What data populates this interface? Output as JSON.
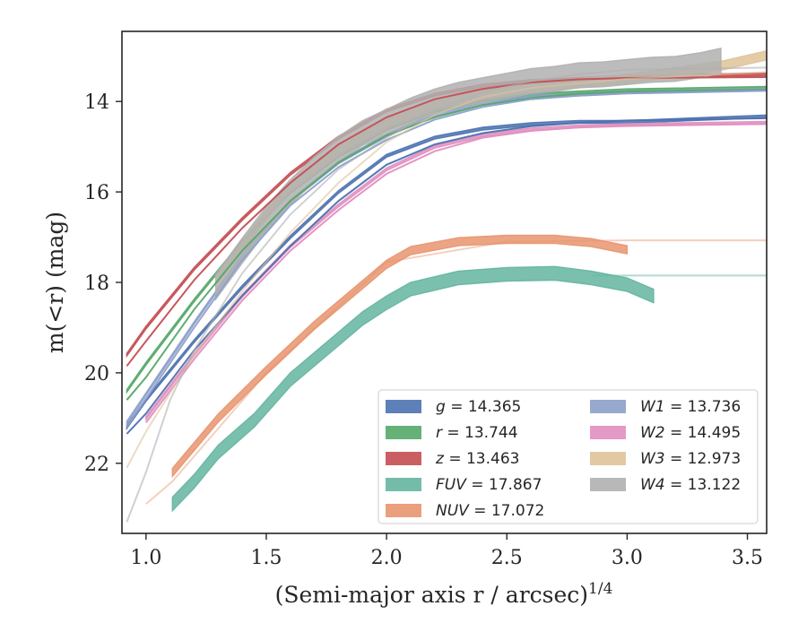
{
  "chart_data": {
    "type": "line",
    "title": "",
    "xlabel": "(Semi-major axis r / arcsec)",
    "xlabel_superscript": "1/4",
    "ylabel": "m(<r) (mag)",
    "xlim": [
      0.9,
      3.58
    ],
    "ylim": [
      23.55,
      12.45
    ],
    "y_inverted": true,
    "grid": false,
    "legend_position": "lower-right",
    "x_ticks": [
      1.0,
      1.5,
      2.0,
      2.5,
      3.0,
      3.5
    ],
    "x_tick_labels": [
      "1.0",
      "1.5",
      "2.0",
      "2.5",
      "3.0",
      "3.5"
    ],
    "y_ticks": [
      14,
      16,
      18,
      20,
      22
    ],
    "y_tick_labels": [
      "14",
      "16",
      "18",
      "20",
      "22"
    ],
    "series": [
      {
        "name": "g = 14.365",
        "color": "#4c72b0",
        "band_width_mag": 0.06,
        "profile": [
          [
            0.92,
            21.2
          ],
          [
            1.0,
            20.6
          ],
          [
            1.2,
            19.3
          ],
          [
            1.4,
            18.1
          ],
          [
            1.6,
            17.0
          ],
          [
            1.8,
            16.0
          ],
          [
            2.0,
            15.2
          ],
          [
            2.2,
            14.8
          ],
          [
            2.4,
            14.6
          ],
          [
            2.6,
            14.5
          ],
          [
            2.8,
            14.45
          ],
          [
            3.0,
            14.45
          ],
          [
            3.58,
            14.33
          ]
        ],
        "model": [
          [
            0.92,
            21.35
          ],
          [
            1.0,
            20.9
          ],
          [
            1.2,
            19.5
          ],
          [
            1.4,
            18.3
          ],
          [
            1.6,
            17.2
          ],
          [
            1.8,
            16.2
          ],
          [
            2.0,
            15.4
          ],
          [
            2.2,
            14.95
          ],
          [
            2.4,
            14.7
          ],
          [
            2.6,
            14.55
          ],
          [
            2.8,
            14.47
          ],
          [
            3.0,
            14.42
          ],
          [
            3.58,
            14.37
          ]
        ]
      },
      {
        "name": "r = 13.744",
        "color": "#55a868",
        "band_width_mag": 0.06,
        "profile": [
          [
            0.92,
            20.4
          ],
          [
            1.0,
            19.8
          ],
          [
            1.2,
            18.4
          ],
          [
            1.4,
            17.1
          ],
          [
            1.6,
            16.0
          ],
          [
            1.8,
            15.2
          ],
          [
            2.0,
            14.6
          ],
          [
            2.2,
            14.2
          ],
          [
            2.4,
            14.0
          ],
          [
            2.6,
            13.85
          ],
          [
            2.8,
            13.8
          ],
          [
            3.0,
            13.75
          ],
          [
            3.58,
            13.7
          ]
        ],
        "model": [
          [
            0.92,
            20.6
          ],
          [
            1.0,
            20.1
          ],
          [
            1.2,
            18.6
          ],
          [
            1.4,
            17.3
          ],
          [
            1.6,
            16.2
          ],
          [
            1.8,
            15.35
          ],
          [
            2.0,
            14.75
          ],
          [
            2.2,
            14.35
          ],
          [
            2.4,
            14.08
          ],
          [
            2.6,
            13.92
          ],
          [
            2.8,
            13.83
          ],
          [
            3.0,
            13.78
          ],
          [
            3.58,
            13.74
          ]
        ]
      },
      {
        "name": "z = 13.463",
        "color": "#c44e52",
        "band_width_mag": 0.06,
        "profile": [
          [
            0.92,
            19.6
          ],
          [
            1.0,
            19.0
          ],
          [
            1.2,
            17.7
          ],
          [
            1.4,
            16.6
          ],
          [
            1.6,
            15.6
          ],
          [
            1.8,
            14.8
          ],
          [
            2.0,
            14.2
          ],
          [
            2.2,
            13.85
          ],
          [
            2.4,
            13.65
          ],
          [
            2.6,
            13.55
          ],
          [
            2.8,
            13.5
          ],
          [
            3.0,
            13.45
          ],
          [
            3.58,
            13.4
          ]
        ],
        "model": [
          [
            0.92,
            19.85
          ],
          [
            1.0,
            19.3
          ],
          [
            1.2,
            17.95
          ],
          [
            1.4,
            16.8
          ],
          [
            1.6,
            15.8
          ],
          [
            1.8,
            14.95
          ],
          [
            2.0,
            14.35
          ],
          [
            2.2,
            13.95
          ],
          [
            2.4,
            13.72
          ],
          [
            2.6,
            13.58
          ],
          [
            2.8,
            13.51
          ],
          [
            3.0,
            13.48
          ],
          [
            3.58,
            13.46
          ]
        ]
      },
      {
        "name": "FUV = 17.867",
        "color": "#64b5a0",
        "band_width_mag": 0.3,
        "profile": [
          [
            1.11,
            22.9
          ],
          [
            1.2,
            22.4
          ],
          [
            1.3,
            21.75
          ],
          [
            1.45,
            21.05
          ],
          [
            1.6,
            20.15
          ],
          [
            1.8,
            19.25
          ],
          [
            1.9,
            18.8
          ],
          [
            2.0,
            18.45
          ],
          [
            2.1,
            18.15
          ],
          [
            2.3,
            17.9
          ],
          [
            2.5,
            17.82
          ],
          [
            2.7,
            17.8
          ],
          [
            2.85,
            17.9
          ],
          [
            3.0,
            18.05
          ],
          [
            3.11,
            18.3
          ]
        ],
        "model": [
          [
            2.85,
            17.85
          ],
          [
            3.58,
            17.85
          ]
        ],
        "model_opacity": 0.5
      },
      {
        "name": "NUV = 17.072",
        "color": "#e8956f",
        "band_width_mag": 0.18,
        "profile": [
          [
            1.11,
            22.2
          ],
          [
            1.3,
            21.0
          ],
          [
            1.5,
            19.95
          ],
          [
            1.7,
            18.95
          ],
          [
            1.9,
            18.05
          ],
          [
            2.0,
            17.6
          ],
          [
            2.1,
            17.3
          ],
          [
            2.3,
            17.1
          ],
          [
            2.5,
            17.05
          ],
          [
            2.7,
            17.05
          ],
          [
            2.85,
            17.12
          ],
          [
            3.0,
            17.28
          ]
        ],
        "model": [
          [
            1.0,
            22.9
          ],
          [
            1.11,
            22.4
          ],
          [
            1.5,
            20.0
          ],
          [
            2.0,
            17.55
          ],
          [
            2.5,
            17.1
          ],
          [
            3.0,
            17.07
          ],
          [
            3.58,
            17.07
          ]
        ],
        "model_opacity": 0.45
      },
      {
        "name": "W1 = 13.736",
        "color": "#8da0cb",
        "band_width_mag": 0.06,
        "profile": [
          [
            0.92,
            21.1
          ],
          [
            1.2,
            18.9
          ],
          [
            1.4,
            17.4
          ],
          [
            1.6,
            16.2
          ],
          [
            1.8,
            15.35
          ],
          [
            2.0,
            14.75
          ],
          [
            2.2,
            14.3
          ],
          [
            2.4,
            14.05
          ],
          [
            2.6,
            13.9
          ],
          [
            2.8,
            13.85
          ],
          [
            3.0,
            13.8
          ],
          [
            3.58,
            13.74
          ]
        ],
        "model": [
          [
            0.92,
            21.2
          ],
          [
            1.2,
            19.0
          ],
          [
            1.4,
            17.5
          ],
          [
            1.6,
            16.3
          ],
          [
            1.8,
            15.45
          ],
          [
            2.0,
            14.85
          ],
          [
            2.2,
            14.4
          ],
          [
            2.4,
            14.12
          ],
          [
            2.6,
            13.95
          ],
          [
            2.8,
            13.87
          ],
          [
            3.0,
            13.82
          ],
          [
            3.58,
            13.76
          ]
        ]
      },
      {
        "name": "W2 = 14.495",
        "color": "#e08fc0",
        "band_width_mag": 0.06,
        "profile": [
          [
            1.0,
            21.0
          ],
          [
            1.2,
            19.6
          ],
          [
            1.4,
            18.3
          ],
          [
            1.6,
            17.2
          ],
          [
            1.8,
            16.3
          ],
          [
            2.0,
            15.5
          ],
          [
            2.2,
            15.0
          ],
          [
            2.4,
            14.75
          ],
          [
            2.6,
            14.62
          ],
          [
            2.8,
            14.55
          ],
          [
            3.0,
            14.52
          ],
          [
            3.58,
            14.47
          ]
        ],
        "model": [
          [
            1.0,
            21.1
          ],
          [
            1.2,
            19.7
          ],
          [
            1.4,
            18.4
          ],
          [
            1.6,
            17.3
          ],
          [
            1.8,
            16.4
          ],
          [
            2.0,
            15.6
          ],
          [
            2.2,
            15.1
          ],
          [
            2.4,
            14.8
          ],
          [
            2.6,
            14.65
          ],
          [
            2.8,
            14.57
          ],
          [
            3.0,
            14.53
          ],
          [
            3.58,
            14.5
          ]
        ]
      },
      {
        "name": "W3 = 12.973",
        "color": "#dfc39a",
        "band_width_mag": 0.2,
        "profile": [
          [
            1.3,
            17.9
          ],
          [
            1.4,
            17.2
          ],
          [
            1.5,
            16.5
          ],
          [
            1.6,
            15.9
          ],
          [
            1.8,
            15.1
          ],
          [
            2.0,
            14.5
          ],
          [
            2.2,
            14.1
          ],
          [
            2.4,
            13.85
          ],
          [
            2.6,
            13.7
          ],
          [
            2.8,
            13.6
          ],
          [
            3.0,
            13.5
          ],
          [
            3.2,
            13.35
          ],
          [
            3.4,
            13.2
          ],
          [
            3.58,
            12.98
          ]
        ],
        "model": [
          [
            0.92,
            22.1
          ],
          [
            1.0,
            21.3
          ],
          [
            1.2,
            19.6
          ],
          [
            1.4,
            18.2
          ],
          [
            1.6,
            16.9
          ],
          [
            1.8,
            15.8
          ],
          [
            2.0,
            14.9
          ],
          [
            2.2,
            14.3
          ],
          [
            2.4,
            13.9
          ],
          [
            2.6,
            13.7
          ],
          [
            2.8,
            13.6
          ],
          [
            3.0,
            13.5
          ],
          [
            3.58,
            13.35
          ]
        ],
        "model_opacity": 0.6
      },
      {
        "name": "W4 = 13.122",
        "color": "#b0b0b0",
        "band_width_mag": 0.55,
        "profile": [
          [
            1.29,
            18.1
          ],
          [
            1.4,
            17.3
          ],
          [
            1.5,
            16.6
          ],
          [
            1.6,
            16.0
          ],
          [
            1.7,
            15.5
          ],
          [
            1.8,
            15.05
          ],
          [
            1.9,
            14.7
          ],
          [
            2.0,
            14.45
          ],
          [
            2.1,
            14.2
          ],
          [
            2.2,
            14.0
          ],
          [
            2.3,
            13.85
          ],
          [
            2.4,
            13.75
          ],
          [
            2.5,
            13.65
          ],
          [
            2.6,
            13.55
          ],
          [
            2.7,
            13.5
          ],
          [
            2.8,
            13.42
          ],
          [
            2.9,
            13.4
          ],
          [
            3.0,
            13.35
          ],
          [
            3.1,
            13.3
          ],
          [
            3.2,
            13.28
          ],
          [
            3.3,
            13.2
          ],
          [
            3.39,
            13.1
          ]
        ],
        "model": [
          [
            0.92,
            23.3
          ],
          [
            1.0,
            22.2
          ],
          [
            1.1,
            20.6
          ],
          [
            1.2,
            19.5
          ],
          [
            1.4,
            17.8
          ],
          [
            1.6,
            16.5
          ],
          [
            1.8,
            15.5
          ],
          [
            2.0,
            14.8
          ],
          [
            2.2,
            14.2
          ],
          [
            2.4,
            13.8
          ],
          [
            2.6,
            13.55
          ],
          [
            2.8,
            13.4
          ],
          [
            3.0,
            13.3
          ],
          [
            3.58,
            13.25
          ]
        ],
        "model_opacity": 0.6
      }
    ]
  }
}
